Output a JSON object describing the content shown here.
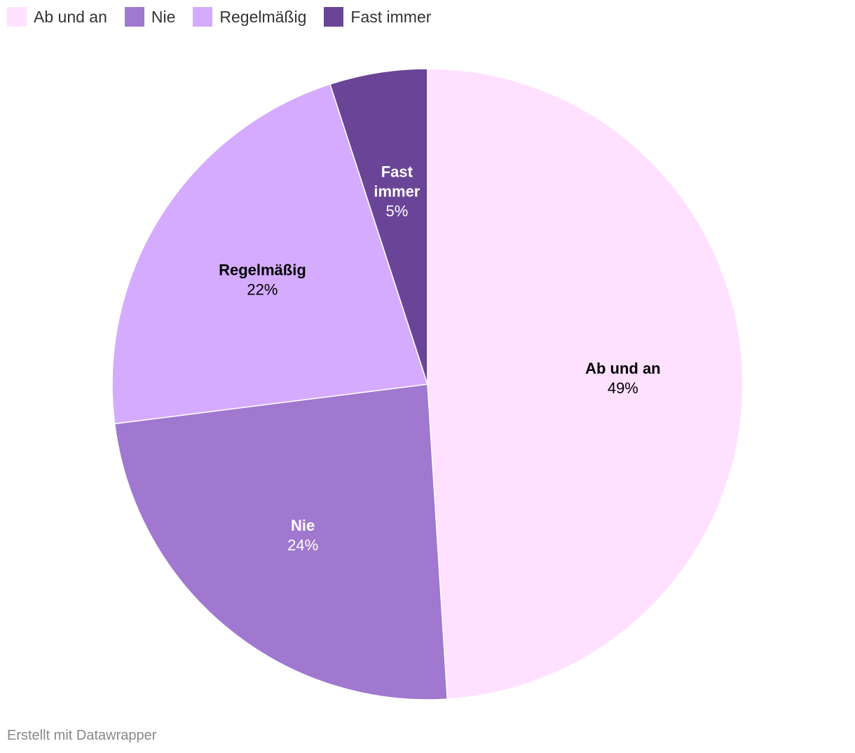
{
  "legend": [
    {
      "label": "Ab und an",
      "color": "#ffe1ff"
    },
    {
      "label": "Nie",
      "color": "#a078cf"
    },
    {
      "label": "Regelmäßig",
      "color": "#d5abff"
    },
    {
      "label": "Fast immer",
      "color": "#6a4597"
    }
  ],
  "chart_data": {
    "type": "pie",
    "legend_position": "top-left",
    "slices": [
      {
        "label": "Ab und an",
        "value": 49,
        "value_label": "49%",
        "color": "#ffe1ff",
        "label_color": "#000000"
      },
      {
        "label": "Nie",
        "value": 24,
        "value_label": "24%",
        "color": "#a078cf",
        "label_color": "#ffffff"
      },
      {
        "label": "Regelmäßig",
        "value": 22,
        "value_label": "22%",
        "color": "#d5abff",
        "label_color": "#000000"
      },
      {
        "label": "Fast immer",
        "value": 5,
        "value_label": "5%",
        "color": "#6a4597",
        "label_color": "#ffffff"
      }
    ]
  },
  "footer": {
    "credit": "Erstellt mit Datawrapper"
  }
}
